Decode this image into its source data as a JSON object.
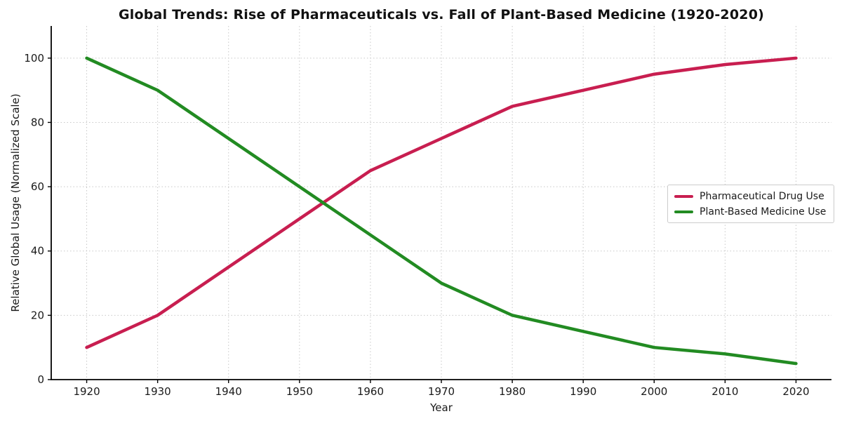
{
  "figure": {
    "title": "Global Trends: Rise of Pharmaceuticals vs. Fall of Plant-Based Medicine (1920-2020)"
  },
  "chart_data": {
    "type": "line",
    "title": "Global Trends: Rise of Pharmaceuticals vs. Fall of Plant-Based Medicine (1920-2020)",
    "xlabel": "Year",
    "ylabel": "Relative Global Usage (Normalized Scale)",
    "x": [
      1920,
      1930,
      1940,
      1950,
      1960,
      1970,
      1980,
      1990,
      2000,
      2010,
      2020
    ],
    "series": [
      {
        "name": "Pharmaceutical Drug Use",
        "color": "#C81E50",
        "values": [
          10,
          20,
          35,
          50,
          65,
          75,
          85,
          90,
          95,
          98,
          100
        ]
      },
      {
        "name": "Plant-Based Medicine Use",
        "color": "#228B22",
        "values": [
          100,
          90,
          75,
          60,
          45,
          30,
          20,
          15,
          10,
          8,
          5
        ]
      }
    ],
    "xlim": [
      1915,
      2025
    ],
    "ylim": [
      0,
      110
    ],
    "x_ticks": [
      1920,
      1930,
      1940,
      1950,
      1960,
      1970,
      1980,
      1990,
      2000,
      2010,
      2020
    ],
    "y_ticks": [
      0,
      20,
      40,
      60,
      80,
      100
    ],
    "grid": "dotted",
    "grid_color": "#c8c8c8",
    "axis_color": "#000000",
    "legend_position": "center-right"
  }
}
